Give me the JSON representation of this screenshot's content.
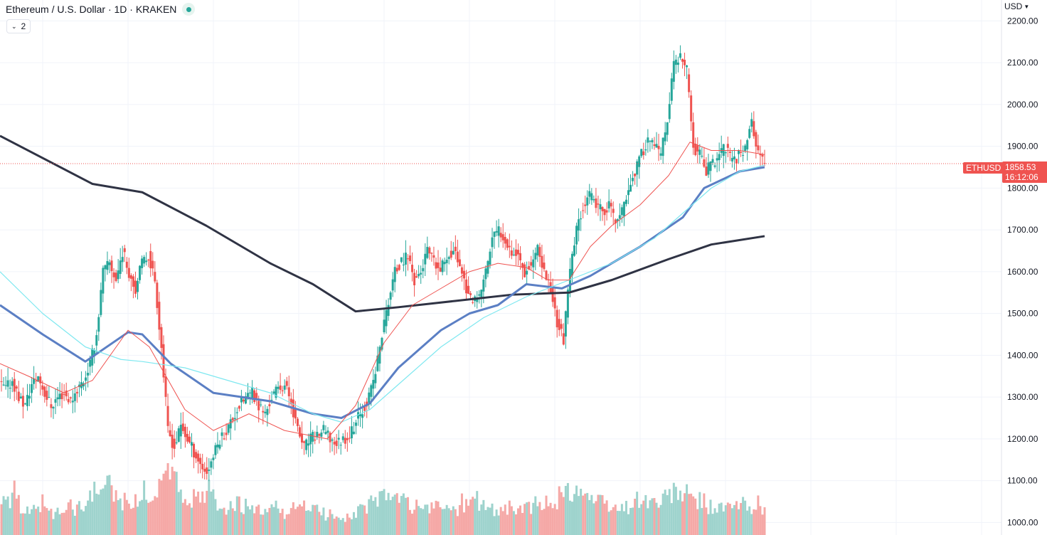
{
  "legend": {
    "title": "Ethereum / U.S. Dollar · 1D · KRAKEN",
    "indicator_count": "2"
  },
  "axis": {
    "currency": "USD"
  },
  "last_price": {
    "symbol": "ETHUSD",
    "price": "1858.53",
    "countdown": "16:12:06"
  },
  "colors": {
    "up": "#26a69a",
    "down": "#ef5350",
    "ma_red": "#ef5350",
    "ma_blue": "#5b7fc4",
    "ma_cyan": "#7fe8f0",
    "ma_black": "#2f3344"
  },
  "chart_data": {
    "type": "candlestick",
    "title": "Ethereum / U.S. Dollar · 1D · KRAKEN",
    "ylim": [
      970,
      2250
    ],
    "y_ticks": [
      "1000.00",
      "1100.00",
      "1200.00",
      "1300.00",
      "1400.00",
      "1500.00",
      "1600.00",
      "1700.00",
      "1800.00",
      "1900.00",
      "2000.00",
      "2100.00",
      "2200.00"
    ],
    "close_path": [
      1330,
      1320,
      1340,
      1300,
      1280,
      1330,
      1350,
      1310,
      1280,
      1300,
      1310,
      1290,
      1320,
      1340,
      1380,
      1450,
      1600,
      1620,
      1580,
      1650,
      1600,
      1560,
      1620,
      1640,
      1580,
      1420,
      1220,
      1180,
      1230,
      1200,
      1170,
      1140,
      1120,
      1160,
      1200,
      1220,
      1250,
      1280,
      1300,
      1310,
      1280,
      1260,
      1300,
      1320,
      1330,
      1290,
      1220,
      1180,
      1200,
      1210,
      1220,
      1200,
      1190,
      1200,
      1210,
      1240,
      1270,
      1300,
      1360,
      1450,
      1530,
      1600,
      1620,
      1640,
      1580,
      1600,
      1650,
      1620,
      1600,
      1640,
      1650,
      1620,
      1560,
      1520,
      1540,
      1600,
      1680,
      1700,
      1680,
      1650,
      1640,
      1600,
      1620,
      1650,
      1600,
      1560,
      1480,
      1440,
      1600,
      1700,
      1760,
      1780,
      1760,
      1740,
      1760,
      1720,
      1740,
      1800,
      1840,
      1880,
      1920,
      1900,
      1880,
      1960,
      2100,
      2110,
      2080,
      1900,
      1880,
      1840,
      1860,
      1880,
      1900,
      1860,
      1880,
      1900,
      1960,
      1880,
      1858.53
    ],
    "volumes": [
      0.55,
      0.48,
      0.62,
      0.4,
      0.35,
      0.5,
      0.45,
      0.38,
      0.3,
      0.36,
      0.42,
      0.33,
      0.4,
      0.5,
      0.58,
      0.7,
      0.65,
      0.55,
      0.48,
      0.5,
      0.45,
      0.52,
      0.6,
      0.58,
      0.66,
      0.95,
      1.0,
      0.7,
      0.55,
      0.5,
      0.48,
      0.52,
      0.6,
      0.45,
      0.4,
      0.38,
      0.42,
      0.4,
      0.35,
      0.33,
      0.3,
      0.35,
      0.38,
      0.32,
      0.3,
      0.36,
      0.45,
      0.4,
      0.35,
      0.3,
      0.28,
      0.3,
      0.27,
      0.25,
      0.3,
      0.35,
      0.4,
      0.45,
      0.5,
      0.55,
      0.6,
      0.5,
      0.45,
      0.42,
      0.4,
      0.38,
      0.36,
      0.42,
      0.4,
      0.38,
      0.35,
      0.45,
      0.5,
      0.48,
      0.4,
      0.36,
      0.34,
      0.4,
      0.38,
      0.36,
      0.35,
      0.4,
      0.42,
      0.38,
      0.45,
      0.5,
      0.55,
      0.6,
      0.65,
      0.68,
      0.55,
      0.5,
      0.45,
      0.4,
      0.38,
      0.36,
      0.4,
      0.45,
      0.5,
      0.48,
      0.46,
      0.44,
      0.5,
      0.58,
      0.6,
      0.55,
      0.5,
      0.48,
      0.45,
      0.4,
      0.38,
      0.36,
      0.38,
      0.4,
      0.42,
      0.38,
      0.45,
      0.4,
      0.3
    ],
    "moving_averages": [
      {
        "name": "ma_black",
        "color": "#2f3344",
        "width": 3,
        "points": [
          [
            0,
            1925
          ],
          [
            130,
            1810
          ],
          [
            200,
            1790
          ],
          [
            290,
            1710
          ],
          [
            380,
            1620
          ],
          [
            440,
            1570
          ],
          [
            500,
            1505
          ],
          [
            560,
            1515
          ],
          [
            640,
            1530
          ],
          [
            720,
            1545
          ],
          [
            800,
            1550
          ],
          [
            860,
            1580
          ],
          [
            940,
            1630
          ],
          [
            1000,
            1665
          ],
          [
            1075,
            1685
          ]
        ]
      },
      {
        "name": "ma_blue",
        "color": "#5b7fc4",
        "width": 3,
        "points": [
          [
            0,
            1520
          ],
          [
            60,
            1450
          ],
          [
            120,
            1385
          ],
          [
            180,
            1455
          ],
          [
            200,
            1450
          ],
          [
            240,
            1380
          ],
          [
            300,
            1310
          ],
          [
            380,
            1290
          ],
          [
            440,
            1260
          ],
          [
            480,
            1250
          ],
          [
            520,
            1285
          ],
          [
            560,
            1370
          ],
          [
            620,
            1460
          ],
          [
            660,
            1500
          ],
          [
            700,
            1520
          ],
          [
            740,
            1570
          ],
          [
            790,
            1560
          ],
          [
            830,
            1590
          ],
          [
            900,
            1660
          ],
          [
            960,
            1730
          ],
          [
            990,
            1800
          ],
          [
            1040,
            1840
          ],
          [
            1075,
            1850
          ]
        ]
      },
      {
        "name": "ma_cyan",
        "color": "#7fe8f0",
        "width": 1.2,
        "points": [
          [
            0,
            1600
          ],
          [
            60,
            1500
          ],
          [
            120,
            1420
          ],
          [
            170,
            1390
          ],
          [
            200,
            1385
          ],
          [
            260,
            1370
          ],
          [
            320,
            1340
          ],
          [
            380,
            1310
          ],
          [
            440,
            1260
          ],
          [
            480,
            1240
          ],
          [
            520,
            1270
          ],
          [
            560,
            1330
          ],
          [
            620,
            1420
          ],
          [
            680,
            1490
          ],
          [
            740,
            1540
          ],
          [
            800,
            1580
          ],
          [
            860,
            1620
          ],
          [
            920,
            1680
          ],
          [
            960,
            1740
          ],
          [
            1000,
            1800
          ],
          [
            1040,
            1840
          ],
          [
            1075,
            1855
          ]
        ]
      },
      {
        "name": "ma_red",
        "color": "#ef5350",
        "width": 1,
        "points": [
          [
            0,
            1380
          ],
          [
            40,
            1350
          ],
          [
            90,
            1310
          ],
          [
            130,
            1340
          ],
          [
            180,
            1460
          ],
          [
            210,
            1420
          ],
          [
            260,
            1270
          ],
          [
            300,
            1220
          ],
          [
            350,
            1260
          ],
          [
            400,
            1220
          ],
          [
            460,
            1200
          ],
          [
            500,
            1280
          ],
          [
            540,
            1430
          ],
          [
            580,
            1520
          ],
          [
            620,
            1560
          ],
          [
            660,
            1600
          ],
          [
            700,
            1620
          ],
          [
            740,
            1610
          ],
          [
            770,
            1580
          ],
          [
            800,
            1580
          ],
          [
            830,
            1660
          ],
          [
            860,
            1710
          ],
          [
            900,
            1760
          ],
          [
            940,
            1830
          ],
          [
            970,
            1910
          ],
          [
            1000,
            1890
          ],
          [
            1040,
            1890
          ],
          [
            1075,
            1880
          ]
        ]
      }
    ]
  }
}
